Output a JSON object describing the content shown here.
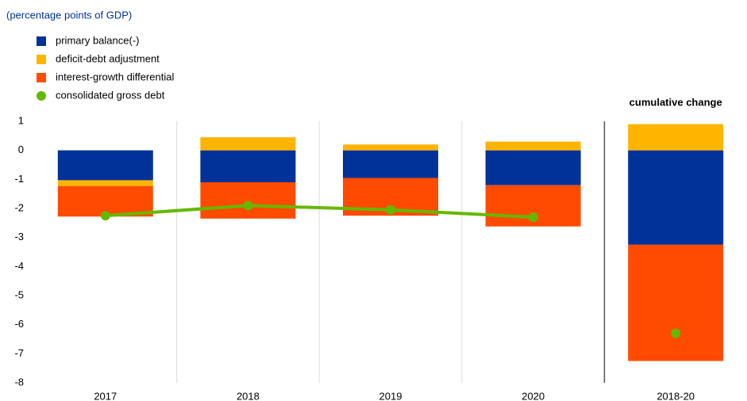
{
  "chart_data": {
    "type": "bar",
    "stacked": true,
    "subtitle": "(percentage points of GDP)",
    "categories": [
      "2017",
      "2018",
      "2019",
      "2020",
      "2018-20"
    ],
    "series": [
      {
        "name": "primary balance(-)",
        "color": "#003299",
        "values": [
          -1.03,
          -1.1,
          -0.95,
          -1.2,
          -3.25
        ]
      },
      {
        "name": "deficit-debt adjustment",
        "color": "#ffb400",
        "values": [
          -0.2,
          0.45,
          0.2,
          0.3,
          0.9
        ]
      },
      {
        "name": "interest-growth differential",
        "color": "#ff4b00",
        "values": [
          -1.05,
          -1.25,
          -1.3,
          -1.42,
          -4.0
        ]
      },
      {
        "name": "consolidated gross debt",
        "color": "#65b800",
        "type": "line",
        "values": [
          -2.25,
          -1.9,
          -2.05,
          -2.3,
          -6.3
        ]
      }
    ],
    "annotation": {
      "text": "cumulative change",
      "category": "2018-20"
    },
    "ylim": [
      -8,
      1
    ],
    "yticks": [
      -8,
      -7,
      -6,
      -5,
      -4,
      -3,
      -2,
      -1,
      0,
      1
    ],
    "grid": "vertical"
  }
}
